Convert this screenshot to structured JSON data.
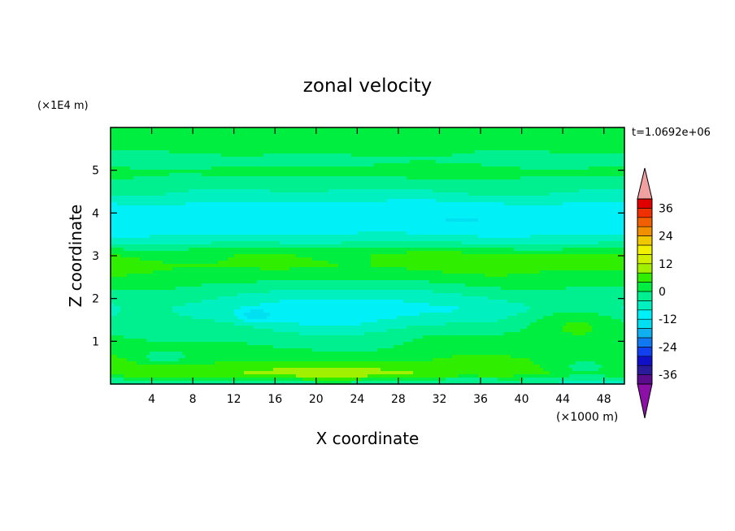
{
  "chart_data": {
    "type": "heatmap",
    "title": "zonal velocity",
    "xlabel": "X coordinate",
    "ylabel": "Z coordinate",
    "x_unit_label": "(×1000 m)",
    "y_unit_label": "(×1E4 m)",
    "time_label": "t=1.0692e+06",
    "xlim": [
      0,
      50
    ],
    "ylim": [
      0,
      6
    ],
    "x_ticks": [
      4,
      8,
      12,
      16,
      20,
      24,
      28,
      32,
      36,
      40,
      44,
      48
    ],
    "y_ticks": [
      1,
      2,
      3,
      4,
      5
    ],
    "colorbar": {
      "levels": [
        -40,
        -36,
        -32,
        -28,
        -24,
        -20,
        -16,
        -12,
        -8,
        -4,
        0,
        4,
        8,
        12,
        16,
        20,
        24,
        28,
        32,
        36,
        40
      ],
      "tick_labels": [
        "36",
        "24",
        "12",
        "0",
        "-12",
        "-24",
        "-36"
      ],
      "tick_values": [
        36,
        24,
        12,
        0,
        -12,
        -24,
        -36
      ],
      "colors": [
        "#5a0c8c",
        "#2a1a9c",
        "#1010c8",
        "#1040f0",
        "#1078f0",
        "#10b0f0",
        "#00e0f0",
        "#00f0f8",
        "#00f0c0",
        "#00f090",
        "#00ee40",
        "#30ee00",
        "#a0f000",
        "#d0f000",
        "#f0f000",
        "#f0c800",
        "#f09000",
        "#f06000",
        "#f03000",
        "#e00000"
      ],
      "under_color": "#8c0fa8",
      "over_color": "#f0a0a0"
    },
    "bands": [
      {
        "z": 5.85,
        "value": 1.5
      },
      {
        "z": 5.55,
        "value": 2.0
      },
      {
        "z": 5.25,
        "value": -1.5
      },
      {
        "z": 4.95,
        "value": 1.5
      },
      {
        "z": 4.65,
        "value": -2.5
      },
      {
        "z": 4.4,
        "value": -5.0
      },
      {
        "z": 4.15,
        "value": -10.0
      },
      {
        "z": 3.85,
        "value": -11.0
      },
      {
        "z": 3.55,
        "value": -9.0
      },
      {
        "z": 3.3,
        "value": -4.0
      },
      {
        "z": 3.05,
        "value": 4.0
      },
      {
        "z": 2.75,
        "value": 5.0
      },
      {
        "z": 2.45,
        "value": 2.0
      },
      {
        "z": 2.1,
        "value": -2.5
      },
      {
        "z": 1.75,
        "value": -6.0
      },
      {
        "z": 1.45,
        "value": -3.0
      },
      {
        "z": 1.15,
        "value": 0.5
      },
      {
        "z": 0.85,
        "value": 1.5
      },
      {
        "z": 0.55,
        "value": 4.0
      },
      {
        "z": 0.25,
        "value": 6.0
      },
      {
        "z": 0.05,
        "value": -4.0
      }
    ],
    "features": [
      {
        "x": 22,
        "z": 1.6,
        "sx": 9,
        "sz": 0.7,
        "value": -7.0
      },
      {
        "x": 14,
        "z": 1.6,
        "sx": 1.6,
        "sz": 0.13,
        "value": -8.0
      },
      {
        "x": 45,
        "z": 1.45,
        "sx": 5,
        "sz": 0.4,
        "value": 7.0
      },
      {
        "x": 22,
        "z": 0.2,
        "sx": 10,
        "sz": 0.25,
        "value": 6.0
      },
      {
        "x": 5,
        "z": 0.6,
        "sx": 2.5,
        "sz": 0.15,
        "value": -6.0
      },
      {
        "x": 44,
        "z": 2.9,
        "sx": 6,
        "sz": 0.12,
        "value": 4.0
      },
      {
        "x": 46,
        "z": 0.35,
        "sx": 4,
        "sz": 0.25,
        "value": -6.0
      },
      {
        "x": 3,
        "z": 1.7,
        "sx": 3,
        "sz": 0.3,
        "value": 4.0
      }
    ]
  }
}
